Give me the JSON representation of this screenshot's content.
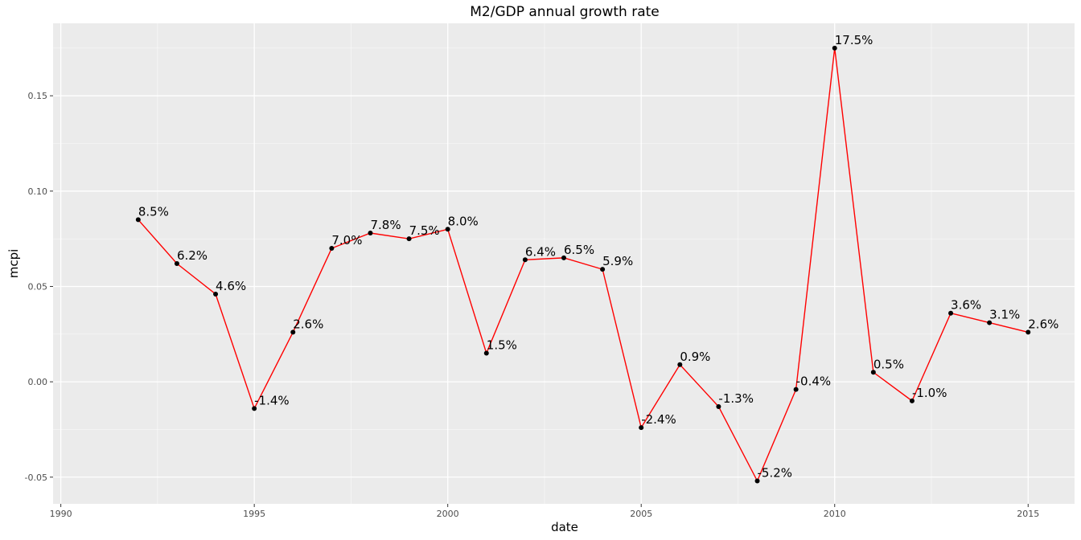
{
  "chart_data": {
    "type": "line",
    "title": "M2/GDP annual growth rate",
    "xlabel": "date",
    "ylabel": "mcpi",
    "xlim": [
      1989.8,
      2016.2
    ],
    "ylim": [
      -0.064,
      0.188
    ],
    "x_ticks": [
      1990,
      1995,
      2000,
      2005,
      2010,
      2015
    ],
    "x_tick_labels": [
      "1990",
      "1995",
      "2000",
      "2005",
      "2010",
      "2015"
    ],
    "y_ticks": [
      -0.05,
      0.0,
      0.05,
      0.1,
      0.15
    ],
    "y_tick_labels": [
      "-0.05",
      "0.00",
      "0.05",
      "0.10",
      "0.15"
    ],
    "grid": true,
    "line_color": "#ff0000",
    "point_color": "#000000",
    "panel_background": "#ebebeb",
    "series": [
      {
        "x": [
          1992,
          1993,
          1994,
          1995,
          1996,
          1997,
          1998,
          1999,
          2000,
          2001,
          2002,
          2003,
          2004,
          2005,
          2006,
          2007,
          2008,
          2009,
          2010,
          2011,
          2012,
          2013,
          2014,
          2015
        ],
        "values": [
          0.085,
          0.062,
          0.046,
          -0.014,
          0.026,
          0.07,
          0.078,
          0.075,
          0.08,
          0.015,
          0.064,
          0.065,
          0.059,
          -0.024,
          0.009,
          -0.013,
          -0.052,
          -0.004,
          0.175,
          0.005,
          -0.01,
          0.036,
          0.031,
          0.026
        ],
        "labels": [
          "8.5%",
          "6.2%",
          "4.6%",
          "-1.4%",
          "2.6%",
          "7.0%",
          "7.8%",
          "7.5%",
          "8.0%",
          "1.5%",
          "6.4%",
          "6.5%",
          "5.9%",
          "-2.4%",
          "0.9%",
          "-1.3%",
          "-5.2%",
          "-0.4%",
          "17.5%",
          "0.5%",
          "-1.0%",
          "3.6%",
          "3.1%",
          "2.6%"
        ]
      }
    ]
  }
}
